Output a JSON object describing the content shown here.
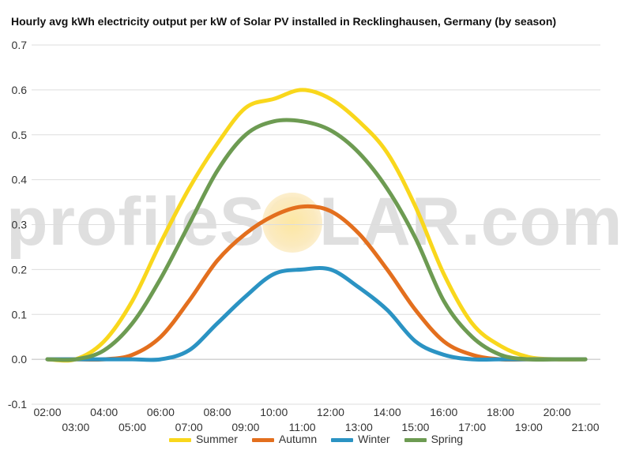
{
  "chart_data": {
    "type": "line",
    "title": "Hourly avg kWh electricity output per kW of Solar PV installed in Recklinghausen, Germany (by season)",
    "xlabel": "",
    "ylabel": "",
    "ylim": [
      -0.1,
      0.7
    ],
    "y_ticks": [
      "-0.1",
      "0.0",
      "0.1",
      "0.2",
      "0.3",
      "0.4",
      "0.5",
      "0.6",
      "0.7"
    ],
    "y_tick_values": [
      -0.1,
      0,
      0.1,
      0.2,
      0.3,
      0.4,
      0.5,
      0.6,
      0.7
    ],
    "x": [
      "02:00",
      "03:00",
      "04:00",
      "05:00",
      "06:00",
      "07:00",
      "08:00",
      "09:00",
      "10:00",
      "11:00",
      "12:00",
      "13:00",
      "14:00",
      "15:00",
      "16:00",
      "17:00",
      "18:00",
      "19:00",
      "20:00",
      "21:00"
    ],
    "x_ticks_upper": [
      "02:00",
      "04:00",
      "06:00",
      "08:00",
      "10:00",
      "12:00",
      "14:00",
      "16:00",
      "18:00",
      "20:00"
    ],
    "x_ticks_lower": [
      "03:00",
      "05:00",
      "07:00",
      "09:00",
      "11:00",
      "13:00",
      "15:00",
      "17:00",
      "19:00",
      "21:00"
    ],
    "grid": true,
    "legend_position": "bottom",
    "series": [
      {
        "name": "Summer",
        "color": "#f9d71c",
        "values": [
          0.0,
          0.0,
          0.04,
          0.13,
          0.26,
          0.38,
          0.48,
          0.56,
          0.58,
          0.6,
          0.58,
          0.53,
          0.46,
          0.34,
          0.19,
          0.08,
          0.03,
          0.005,
          0.0,
          0.0
        ]
      },
      {
        "name": "Autumn",
        "color": "#e36f1e",
        "values": [
          0.0,
          0.0,
          0.0,
          0.01,
          0.05,
          0.13,
          0.22,
          0.28,
          0.32,
          0.34,
          0.33,
          0.28,
          0.2,
          0.11,
          0.04,
          0.01,
          0.0,
          0.0,
          0.0,
          0.0
        ]
      },
      {
        "name": "Winter",
        "color": "#2b93c3",
        "values": [
          0.0,
          0.0,
          0.0,
          0.0,
          0.0,
          0.02,
          0.08,
          0.14,
          0.19,
          0.2,
          0.2,
          0.16,
          0.11,
          0.04,
          0.01,
          0.0,
          0.0,
          0.0,
          0.0,
          0.0
        ]
      },
      {
        "name": "Spring",
        "color": "#6d9b52",
        "values": [
          0.0,
          0.0,
          0.02,
          0.08,
          0.18,
          0.3,
          0.42,
          0.5,
          0.53,
          0.53,
          0.51,
          0.46,
          0.38,
          0.27,
          0.13,
          0.05,
          0.01,
          0.0,
          0.0,
          0.0
        ]
      }
    ]
  },
  "watermark": {
    "text": "profileSOLAR.com"
  }
}
